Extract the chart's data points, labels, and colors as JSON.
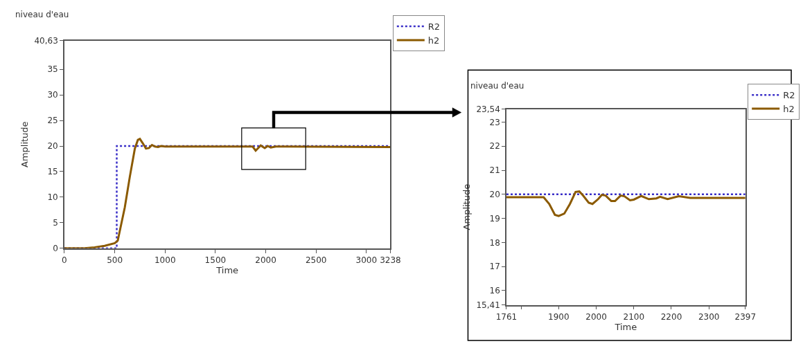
{
  "chart_data": [
    {
      "type": "line",
      "title": "niveau d'eau",
      "xlabel": "Time",
      "ylabel": "Amplitude",
      "xlim": [
        0,
        3238
      ],
      "xticks": [
        0,
        500,
        1000,
        1500,
        2000,
        2500,
        3000,
        3238
      ],
      "ylim": [
        0,
        40.63
      ],
      "yticks": [
        0,
        5,
        10,
        15,
        20,
        25,
        30,
        35,
        {
          "value": 40.63,
          "label": "40,63"
        }
      ],
      "legend": "top right",
      "marker": "none",
      "series": [
        {
          "name": "R2",
          "color": "#3a2fc8",
          "line_style": "dotted",
          "x": [
            0,
            520,
            520,
            3238
          ],
          "values": [
            0,
            0,
            20,
            20
          ]
        },
        {
          "name": "h2",
          "color": "#8b5a00",
          "line_style": "solid",
          "x": [
            0,
            200,
            300,
            400,
            500,
            530,
            600,
            650,
            700,
            730,
            750,
            780,
            810,
            840,
            870,
            900,
            930,
            960,
            1000,
            1800,
            1870,
            1900,
            1950,
            1990,
            2020,
            2050,
            2100,
            2200,
            3238
          ],
          "values": [
            0,
            0,
            0.2,
            0.5,
            1.0,
            1.5,
            8,
            14,
            19.5,
            21.2,
            21.4,
            20.5,
            19.5,
            19.6,
            20.2,
            19.9,
            19.8,
            20.0,
            19.9,
            19.9,
            19.9,
            19.1,
            20.1,
            19.6,
            20.0,
            19.7,
            19.9,
            19.9,
            19.8
          ]
        }
      ]
    },
    {
      "type": "line",
      "title": "niveau d'eau",
      "xlabel": "Time",
      "ylabel": "Amplitude",
      "xlim": [
        1761,
        2397
      ],
      "xticks": [
        1761,
        {
          "value": 1800,
          "label": null
        },
        1900,
        2000,
        2100,
        2200,
        2300,
        2397
      ],
      "ylim": [
        15.41,
        23.54
      ],
      "yticks": [
        {
          "value": 15.41,
          "label": "15,41"
        },
        16,
        17,
        18,
        19,
        20,
        21,
        22,
        23,
        {
          "value": 23.54,
          "label": "23,54"
        }
      ],
      "legend": "top right",
      "marker": "none",
      "series": [
        {
          "name": "R2",
          "color": "#3a2fc8",
          "line_style": "dotted",
          "x": [
            1761,
            2397
          ],
          "values": [
            20,
            20
          ]
        },
        {
          "name": "h2",
          "color": "#8b5a00",
          "line_style": "solid",
          "x": [
            1761,
            1860,
            1875,
            1890,
            1900,
            1915,
            1930,
            1945,
            1955,
            1965,
            1980,
            1990,
            2005,
            2015,
            2025,
            2040,
            2050,
            2065,
            2075,
            2090,
            2100,
            2120,
            2140,
            2160,
            2170,
            2190,
            2220,
            2250,
            2300,
            2397
          ],
          "values": [
            19.88,
            19.88,
            19.6,
            19.15,
            19.1,
            19.2,
            19.6,
            20.1,
            20.12,
            19.95,
            19.65,
            19.6,
            19.8,
            19.98,
            19.95,
            19.72,
            19.72,
            19.95,
            19.92,
            19.75,
            19.78,
            19.93,
            19.8,
            19.83,
            19.9,
            19.8,
            19.92,
            19.85,
            19.85,
            19.85
          ]
        }
      ]
    }
  ]
}
